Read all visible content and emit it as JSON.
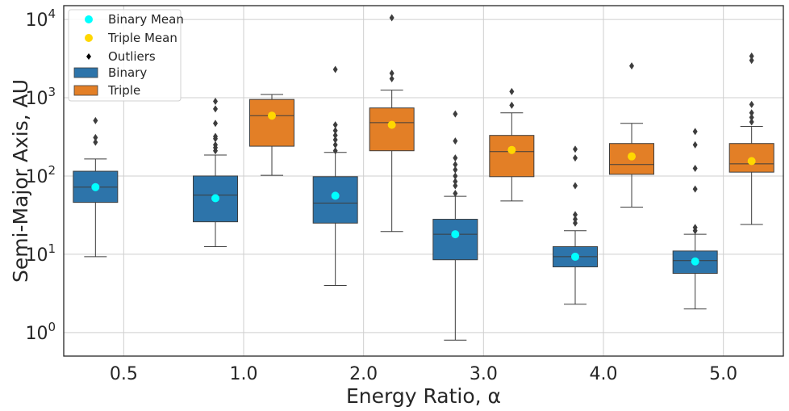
{
  "chart_data": {
    "type": "box",
    "categories": [
      "0.5",
      "1.0",
      "2.0",
      "3.0",
      "4.0",
      "5.0"
    ],
    "xlabel": "Energy Ratio, α",
    "ylabel": "Semi-Major Axis, AU",
    "yscale": "log",
    "ylim": [
      0.5,
      15000
    ],
    "ytick_values": [
      1,
      10,
      100,
      1000,
      10000
    ],
    "ytick_labels": [
      {
        "base": "10",
        "exp": "0"
      },
      {
        "base": "10",
        "exp": "1"
      },
      {
        "base": "10",
        "exp": "2"
      },
      {
        "base": "10",
        "exp": "3"
      },
      {
        "base": "10",
        "exp": "4"
      }
    ],
    "grid": true,
    "legend": {
      "position": "top-left",
      "entries": [
        {
          "label": "Binary Mean",
          "marker": "circle",
          "color": "#00ffff"
        },
        {
          "label": "Triple Mean",
          "marker": "circle",
          "color": "#ffd700"
        },
        {
          "label": "Outliers",
          "marker": "diamond",
          "color": "#000000"
        },
        {
          "label": "Binary",
          "marker": "patch",
          "color": "#2d74aa"
        },
        {
          "label": "Triple",
          "marker": "patch",
          "color": "#e37f26"
        }
      ]
    },
    "series": [
      {
        "name": "Binary",
        "color": "#2d74aa",
        "mean_color": "#00ffff",
        "boxes": [
          {
            "category": "0.5",
            "whislo": 9.3,
            "q1": 46,
            "med": 72,
            "q3": 115,
            "whishi": 165,
            "mean": 72,
            "fliers": [
              270,
              310,
              510
            ]
          },
          {
            "category": "1.0",
            "whislo": 12.5,
            "q1": 26,
            "med": 57,
            "q3": 100,
            "whishi": 185,
            "mean": 52,
            "fliers": [
              210,
              230,
              250,
              300,
              320,
              470,
              720,
              900
            ]
          },
          {
            "category": "2.0",
            "whislo": 4.0,
            "q1": 25,
            "med": 45,
            "q3": 98,
            "whishi": 200,
            "mean": 56,
            "fliers": [
              210,
              250,
              290,
              330,
              380,
              450,
              2300
            ]
          },
          {
            "category": "3.0",
            "whislo": 0.8,
            "q1": 8.5,
            "med": 18,
            "q3": 28,
            "whishi": 55,
            "mean": 18,
            "fliers": [
              60,
              75,
              85,
              100,
              120,
              140,
              170,
              280,
              620
            ]
          },
          {
            "category": "4.0",
            "whislo": 2.3,
            "q1": 6.9,
            "med": 9.3,
            "q3": 12.5,
            "whishi": 20,
            "mean": 9.3,
            "fliers": [
              25,
              28,
              32,
              75,
              170,
              220
            ]
          },
          {
            "category": "5.0",
            "whislo": 2.0,
            "q1": 5.7,
            "med": 8.3,
            "q3": 11,
            "whishi": 18,
            "mean": 8.1,
            "fliers": [
              20,
              22,
              68,
              125,
              250,
              370
            ]
          }
        ]
      },
      {
        "name": "Triple",
        "color": "#e37f26",
        "mean_color": "#ffd700",
        "boxes": [
          {
            "category": "0.5",
            "empty": true
          },
          {
            "category": "1.0",
            "whislo": 102,
            "q1": 240,
            "med": 590,
            "q3": 950,
            "whishi": 1100,
            "mean": 590,
            "fliers": []
          },
          {
            "category": "2.0",
            "whislo": 19.5,
            "q1": 210,
            "med": 480,
            "q3": 740,
            "whishi": 1250,
            "mean": 450,
            "fliers": [
              1750,
              2050,
              10500
            ]
          },
          {
            "category": "3.0",
            "whislo": 48,
            "q1": 98,
            "med": 205,
            "q3": 330,
            "whishi": 640,
            "mean": 215,
            "fliers": [
              800,
              1200
            ]
          },
          {
            "category": "4.0",
            "whislo": 40,
            "q1": 105,
            "med": 140,
            "q3": 260,
            "whishi": 470,
            "mean": 178,
            "fliers": [
              2550
            ]
          },
          {
            "category": "5.0",
            "whislo": 24,
            "q1": 112,
            "med": 143,
            "q3": 260,
            "whishi": 430,
            "mean": 155,
            "fliers": [
              490,
              560,
              640,
              820,
              3000,
              3400
            ]
          }
        ]
      }
    ]
  }
}
